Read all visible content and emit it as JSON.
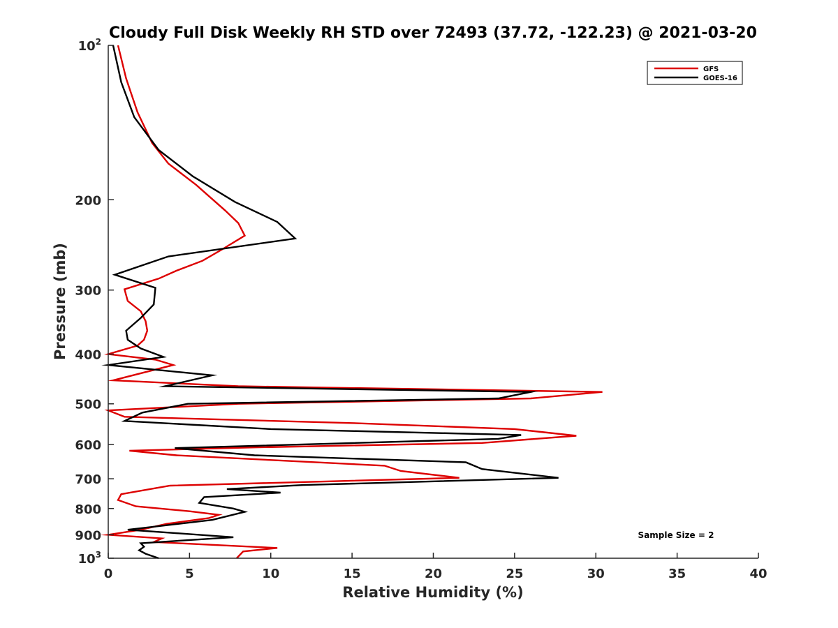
{
  "chart_data": {
    "type": "line",
    "title": "Cloudy Full Disk Weekly RH STD over 72493 (37.72, -122.23) @ 2021-03-20",
    "xlabel": "Relative Humidity (%)",
    "ylabel": "Pressure (mb)",
    "xlim": [
      0,
      40
    ],
    "ylim": [
      100,
      1000
    ],
    "y_scale": "log",
    "y_reversed": true,
    "grid": false,
    "legend_position": "top-right",
    "x_ticks": [
      "0",
      "5",
      "10",
      "15",
      "20",
      "25",
      "30",
      "35",
      "40"
    ],
    "y_ticks": [
      {
        "base": "10",
        "exp": "2",
        "value": 100
      },
      {
        "base": "200",
        "exp": "",
        "value": 200
      },
      {
        "base": "300",
        "exp": "",
        "value": 300
      },
      {
        "base": "400",
        "exp": "",
        "value": 400
      },
      {
        "base": "500",
        "exp": "",
        "value": 500
      },
      {
        "base": "600",
        "exp": "",
        "value": 600
      },
      {
        "base": "700",
        "exp": "",
        "value": 700
      },
      {
        "base": "800",
        "exp": "",
        "value": 800
      },
      {
        "base": "900",
        "exp": "",
        "value": 900
      },
      {
        "base": "10",
        "exp": "3",
        "value": 1000
      }
    ],
    "annotation": "Sample Size = 2",
    "series": [
      {
        "name": "GFS",
        "color": "#dd0000",
        "points": [
          [
            0.6,
            100
          ],
          [
            1.1,
            116
          ],
          [
            1.8,
            135
          ],
          [
            2.7,
            155
          ],
          [
            3.7,
            170
          ],
          [
            5.4,
            187
          ],
          [
            7.2,
            210
          ],
          [
            8.0,
            222
          ],
          [
            8.4,
            235
          ],
          [
            7.0,
            250
          ],
          [
            5.8,
            263
          ],
          [
            4.2,
            275
          ],
          [
            3.1,
            285
          ],
          [
            1.0,
            299
          ],
          [
            1.2,
            315
          ],
          [
            2.0,
            330
          ],
          [
            2.3,
            345
          ],
          [
            2.4,
            360
          ],
          [
            2.2,
            375
          ],
          [
            1.8,
            385
          ],
          [
            0.0,
            400
          ],
          [
            2.9,
            410
          ],
          [
            4.0,
            420
          ],
          [
            0.3,
            450
          ],
          [
            8.0,
            462
          ],
          [
            30.4,
            474
          ],
          [
            26.0,
            488
          ],
          [
            8.0,
            500
          ],
          [
            0.0,
            515
          ],
          [
            1.0,
            530
          ],
          [
            15.0,
            545
          ],
          [
            25.0,
            560
          ],
          [
            28.8,
            577
          ],
          [
            23.0,
            596
          ],
          [
            9.0,
            608
          ],
          [
            1.3,
            617
          ],
          [
            4.2,
            630
          ],
          [
            17.0,
            660
          ],
          [
            18.0,
            676
          ],
          [
            21.6,
            697
          ],
          [
            3.8,
            722
          ],
          [
            0.8,
            750
          ],
          [
            0.6,
            770
          ],
          [
            1.7,
            792
          ],
          [
            5.0,
            810
          ],
          [
            6.8,
            823
          ],
          [
            6.2,
            835
          ],
          [
            3.6,
            857
          ],
          [
            2.0,
            880
          ],
          [
            0.0,
            900
          ],
          [
            3.3,
            915
          ],
          [
            2.8,
            930
          ],
          [
            10.4,
            955
          ],
          [
            8.3,
            970
          ],
          [
            7.9,
            1000
          ]
        ]
      },
      {
        "name": "GOES-16",
        "color": "#000000",
        "points": [
          [
            0.3,
            100
          ],
          [
            0.8,
            118
          ],
          [
            1.6,
            138
          ],
          [
            3.1,
            160
          ],
          [
            5.2,
            180
          ],
          [
            7.8,
            202
          ],
          [
            10.4,
            221
          ],
          [
            11.5,
            238
          ],
          [
            3.7,
            258
          ],
          [
            0.4,
            280
          ],
          [
            2.9,
            297
          ],
          [
            2.8,
            320
          ],
          [
            2.0,
            340
          ],
          [
            1.1,
            360
          ],
          [
            1.2,
            375
          ],
          [
            2.0,
            390
          ],
          [
            3.4,
            405
          ],
          [
            0.0,
            420
          ],
          [
            6.4,
            440
          ],
          [
            3.5,
            462
          ],
          [
            26.0,
            474
          ],
          [
            24.0,
            488
          ],
          [
            4.9,
            500
          ],
          [
            2.1,
            520
          ],
          [
            1.0,
            540
          ],
          [
            10.0,
            560
          ],
          [
            25.4,
            575
          ],
          [
            24.0,
            585
          ],
          [
            4.1,
            610
          ],
          [
            9.0,
            630
          ],
          [
            22.0,
            650
          ],
          [
            23.0,
            670
          ],
          [
            27.7,
            697
          ],
          [
            12.0,
            720
          ],
          [
            7.3,
            733
          ],
          [
            10.6,
            745
          ],
          [
            5.9,
            760
          ],
          [
            5.6,
            780
          ],
          [
            7.7,
            800
          ],
          [
            8.4,
            812
          ],
          [
            6.4,
            842
          ],
          [
            1.2,
            880
          ],
          [
            7.7,
            910
          ],
          [
            2.0,
            935
          ],
          [
            2.2,
            950
          ],
          [
            1.9,
            965
          ],
          [
            2.3,
            980
          ],
          [
            3.1,
            1000
          ]
        ]
      }
    ]
  }
}
